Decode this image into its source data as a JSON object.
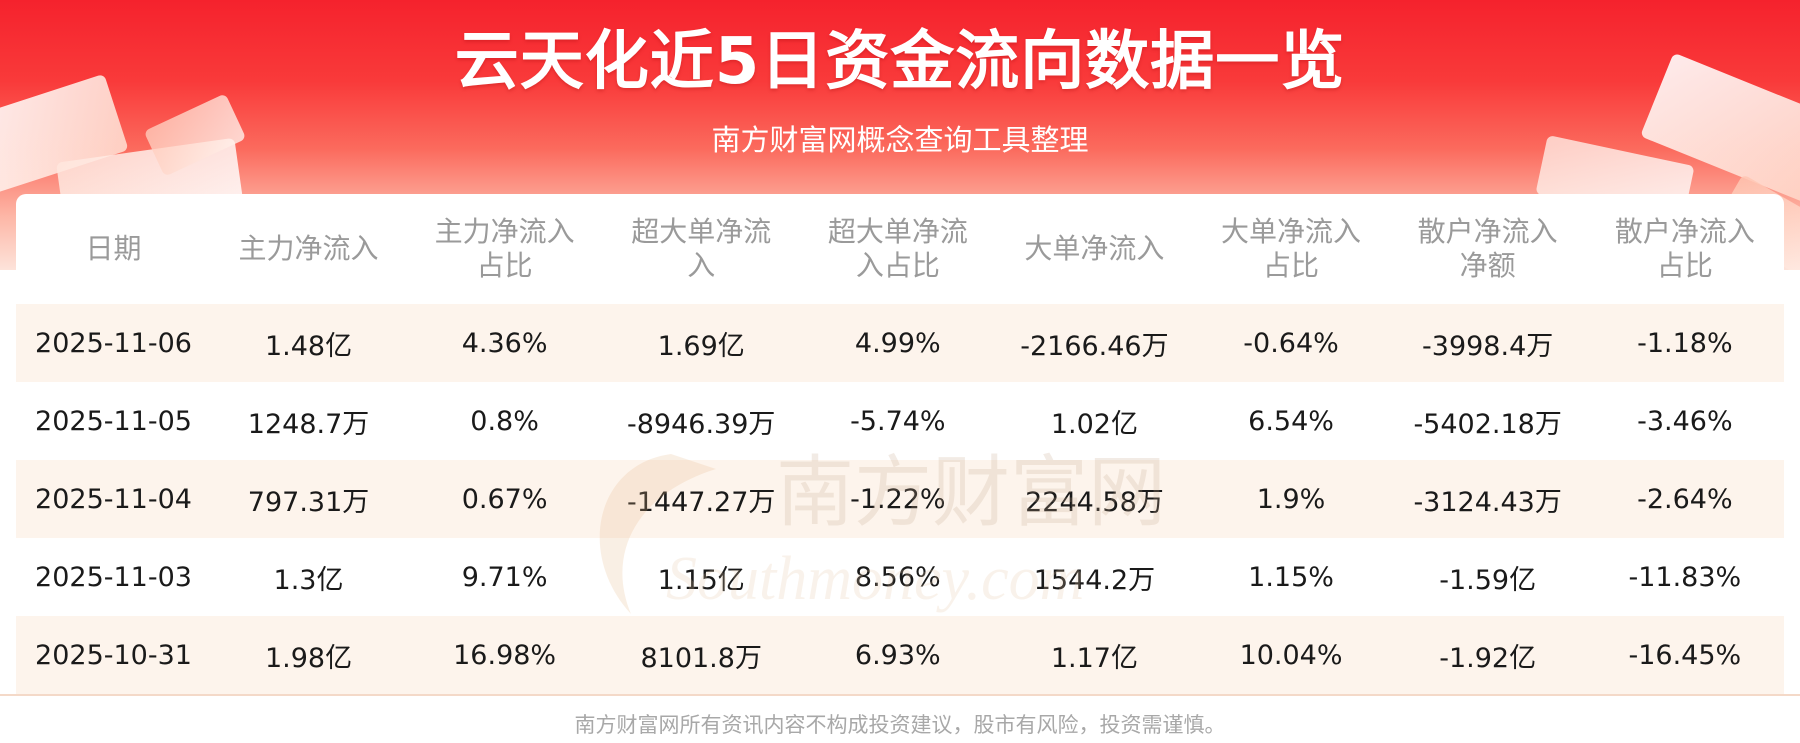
{
  "header": {
    "title": "云天化近5日资金流向数据一览",
    "subtitle": "南方财富网概念查询工具整理"
  },
  "table": {
    "columns": [
      {
        "line1": "日期",
        "line2": ""
      },
      {
        "line1": "主力净流入",
        "line2": ""
      },
      {
        "line1": "主力净流入",
        "line2": "占比"
      },
      {
        "line1": "超大单净流",
        "line2": "入"
      },
      {
        "line1": "超大单净流",
        "line2": "入占比"
      },
      {
        "line1": "大单净流入",
        "line2": ""
      },
      {
        "line1": "大单净流入",
        "line2": "占比"
      },
      {
        "line1": "散户净流入",
        "line2": "净额"
      },
      {
        "line1": "散户净流入",
        "line2": "占比"
      }
    ],
    "rows": [
      [
        "2025-11-06",
        "1.48亿",
        "4.36%",
        "1.69亿",
        "4.99%",
        "-2166.46万",
        "-0.64%",
        "-3998.4万",
        "-1.18%"
      ],
      [
        "2025-11-05",
        "1248.7万",
        "0.8%",
        "-8946.39万",
        "-5.74%",
        "1.02亿",
        "6.54%",
        "-5402.18万",
        "-3.46%"
      ],
      [
        "2025-11-04",
        "797.31万",
        "0.67%",
        "-1447.27万",
        "-1.22%",
        "2244.58万",
        "1.9%",
        "-3124.43万",
        "-2.64%"
      ],
      [
        "2025-11-03",
        "1.3亿",
        "9.71%",
        "1.15亿",
        "8.56%",
        "1544.2万",
        "1.15%",
        "-1.59亿",
        "-11.83%"
      ],
      [
        "2025-10-31",
        "1.98亿",
        "16.98%",
        "8101.8万",
        "6.93%",
        "1.17亿",
        "10.04%",
        "-1.92亿",
        "-16.45%"
      ]
    ]
  },
  "watermark": {
    "line1": "南方财富网",
    "line2": "Southmoney.com"
  },
  "footer": {
    "disclaimer": "南方财富网所有资讯内容不构成投资建议，股市有风险，投资需谨慎。"
  },
  "colors": {
    "banner_red": "#f5222d",
    "row_stripe": "#fdf4ec",
    "header_text": "#9a9a9a"
  }
}
